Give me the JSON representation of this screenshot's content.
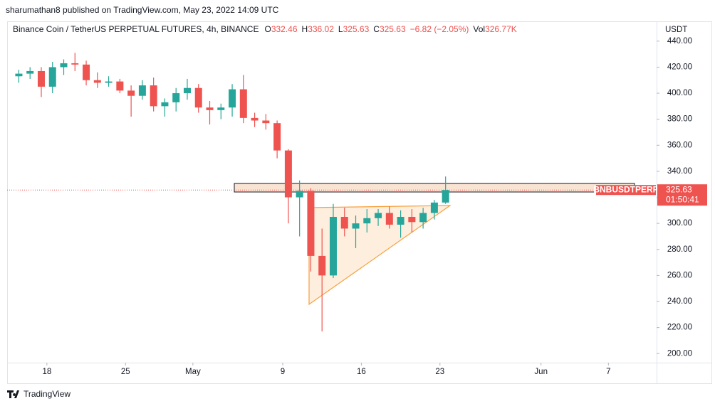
{
  "header": {
    "published": "sharumathan8 published on TradingView.com, May 23, 2022 14:09 UTC",
    "symbol": "Binance Coin / TetherUS PERPETUAL FUTURES, 4h, BINANCE",
    "ohlc": [
      {
        "key": "O",
        "value": "332.46"
      },
      {
        "key": "H",
        "value": "336.02"
      },
      {
        "key": "L",
        "value": "325.63"
      },
      {
        "key": "C",
        "value": "325.63"
      }
    ],
    "change": "−6.82 (−2.05%)",
    "volume_key": "Vol",
    "volume": "326.77K"
  },
  "footer": {
    "brand": "TradingView"
  },
  "chart_data": {
    "type": "candlestick",
    "y_axis_label": "USDT",
    "x": [
      "2022-04-15",
      "2022-04-16",
      "2022-04-17",
      "2022-04-18",
      "2022-04-19",
      "2022-04-20",
      "2022-04-21",
      "2022-04-22",
      "2022-04-23",
      "2022-04-24",
      "2022-04-25",
      "2022-04-26",
      "2022-04-27",
      "2022-04-28",
      "2022-04-29",
      "2022-04-30",
      "2022-05-01",
      "2022-05-02",
      "2022-05-03",
      "2022-05-04",
      "2022-05-05",
      "2022-05-06",
      "2022-05-07",
      "2022-05-08",
      "2022-05-09",
      "2022-05-10",
      "2022-05-11",
      "2022-05-12",
      "2022-05-13",
      "2022-05-14",
      "2022-05-15",
      "2022-05-16",
      "2022-05-17",
      "2022-05-18",
      "2022-05-19",
      "2022-05-20",
      "2022-05-21",
      "2022-05-22",
      "2022-05-23"
    ],
    "open": [
      413,
      415,
      417,
      405,
      420,
      423,
      422,
      410,
      408,
      409,
      402,
      398,
      406,
      390,
      393,
      400,
      404,
      389,
      387,
      389,
      403,
      381,
      379,
      377,
      356,
      320,
      325,
      275,
      260,
      305,
      296,
      300,
      304,
      308,
      299,
      305,
      301,
      308,
      316
    ],
    "high": [
      418,
      420,
      420,
      424,
      426,
      431,
      425,
      416,
      413,
      411,
      406,
      410,
      412,
      396,
      404,
      411,
      407,
      394,
      392,
      407,
      414,
      385,
      384,
      379,
      357,
      333,
      327,
      296,
      315,
      312,
      306,
      311,
      311,
      313,
      310,
      311,
      312,
      318,
      336
    ],
    "low": [
      408,
      411,
      397,
      400,
      414,
      417,
      406,
      404,
      405,
      400,
      382,
      395,
      386,
      382,
      386,
      395,
      385,
      376,
      380,
      382,
      377,
      374,
      372,
      350,
      300,
      290,
      263,
      217,
      258,
      290,
      281,
      293,
      298,
      296,
      289,
      293,
      296,
      303,
      315
    ],
    "close": [
      415,
      417,
      405,
      420,
      423,
      422,
      410,
      408,
      409,
      402,
      398,
      406,
      390,
      393,
      400,
      404,
      389,
      387,
      389,
      403,
      381,
      379,
      377,
      356,
      320,
      325,
      275,
      260,
      305,
      296,
      300,
      304,
      308,
      299,
      305,
      301,
      308,
      316,
      325.63
    ],
    "up_color": "#26a69a",
    "down_color": "#ef5350",
    "xlim": [
      "2022-04-14T11:00Z",
      "2022-06-11T07:00Z"
    ],
    "xticks": [
      {
        "value": "2022-04-18",
        "label": "18"
      },
      {
        "value": "2022-04-25",
        "label": "25"
      },
      {
        "value": "2022-05-01",
        "label": "May"
      },
      {
        "value": "2022-05-09",
        "label": "9"
      },
      {
        "value": "2022-05-16",
        "label": "16"
      },
      {
        "value": "2022-05-23",
        "label": "23"
      },
      {
        "value": "2022-06-01",
        "label": "Jun"
      },
      {
        "value": "2022-06-07",
        "label": "7"
      }
    ],
    "ylim": [
      193.02,
      455.2
    ],
    "yticks": [
      {
        "value": 200,
        "label": "200.00"
      },
      {
        "value": 220,
        "label": "220.00"
      },
      {
        "value": 240,
        "label": "240.00"
      },
      {
        "value": 260,
        "label": "260.00"
      },
      {
        "value": 280,
        "label": "280.00"
      },
      {
        "value": 300,
        "label": "300.00"
      },
      {
        "value": 320,
        "label": "320.00"
      },
      {
        "value": 340,
        "label": "340.00"
      },
      {
        "value": 360,
        "label": "360.00"
      },
      {
        "value": 380,
        "label": "380.00"
      },
      {
        "value": 400,
        "label": "400.00"
      },
      {
        "value": 420,
        "label": "420.00"
      },
      {
        "value": 440,
        "label": "440.00"
      }
    ],
    "grid": false,
    "last_price": {
      "value": 325.63,
      "label": "325.63",
      "countdown": "01:50:41",
      "symbol_tag": "BNBUSDTPERP",
      "color": "#ef5350"
    }
  }
}
